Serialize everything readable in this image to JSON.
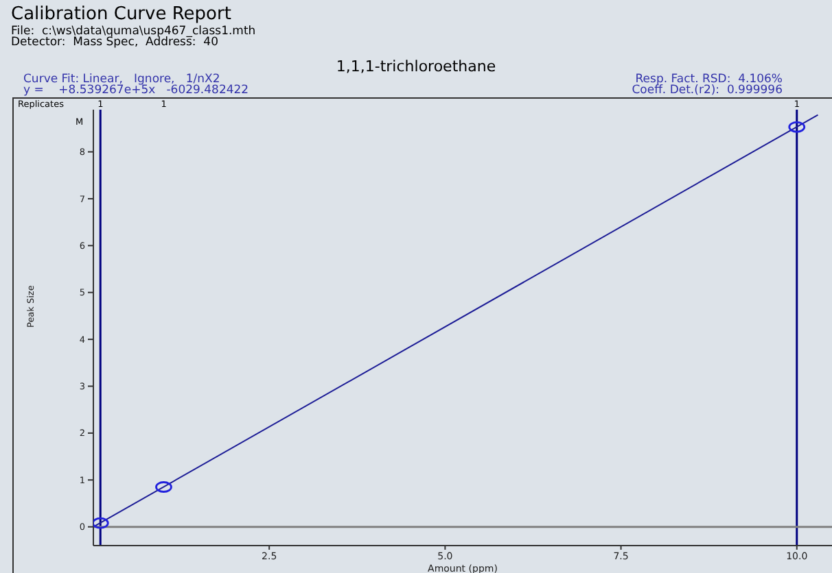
{
  "chart_data": {
    "type": "scatter",
    "title": "1,1,1-trichloroethane",
    "xlabel": "Amount (ppm)",
    "ylabel": "Peak Size",
    "annotations": [
      "Calibration Curve Report",
      "File:  c:\\ws\\data\\quma\\usp467_class1.mth",
      "Detector:  Mass Spec,  Address:  40",
      "Curve Fit: Linear,   Ignore,   1/nX2",
      "y =    +8.539267e+5x   -6029.482422",
      "Resp. Fact. RSD:  4.106%",
      "Coeff. Det.(r2):  0.999996",
      "Replicates",
      "M",
      "1",
      "1",
      "1"
    ],
    "series": [
      {
        "color": "#2222dd",
        "x": [
          0.1,
          1.0,
          10.0
        ],
        "values": [
          0.08,
          0.85,
          8.53
        ],
        "marker": "circle"
      },
      {
        "type": "line",
        "color": "#1c1c96",
        "x": [
          0,
          10.3
        ],
        "values": [
          0,
          8.79
        ],
        "marker": "none"
      }
    ],
    "xlim": [
      0,
      10.5
    ],
    "xticks": [
      {
        "value": 2.5,
        "label": "2.5"
      },
      {
        "value": 5,
        "label": "5.0"
      },
      {
        "value": 7.5,
        "label": "7.5"
      },
      {
        "value": 10,
        "label": "10.0"
      }
    ],
    "ylim": [
      -0.4,
      8.9
    ],
    "yticks": [
      0,
      1,
      2,
      3,
      4,
      5,
      6,
      7,
      8
    ],
    "ref_lines": [
      {
        "axis": "x",
        "value": 0.1,
        "color": "#000080"
      },
      {
        "axis": "x",
        "value": 10,
        "color": "#000080"
      },
      {
        "axis": "y",
        "value": 0,
        "color": "#808080"
      }
    ],
    "tick_labels": "xy"
  }
}
